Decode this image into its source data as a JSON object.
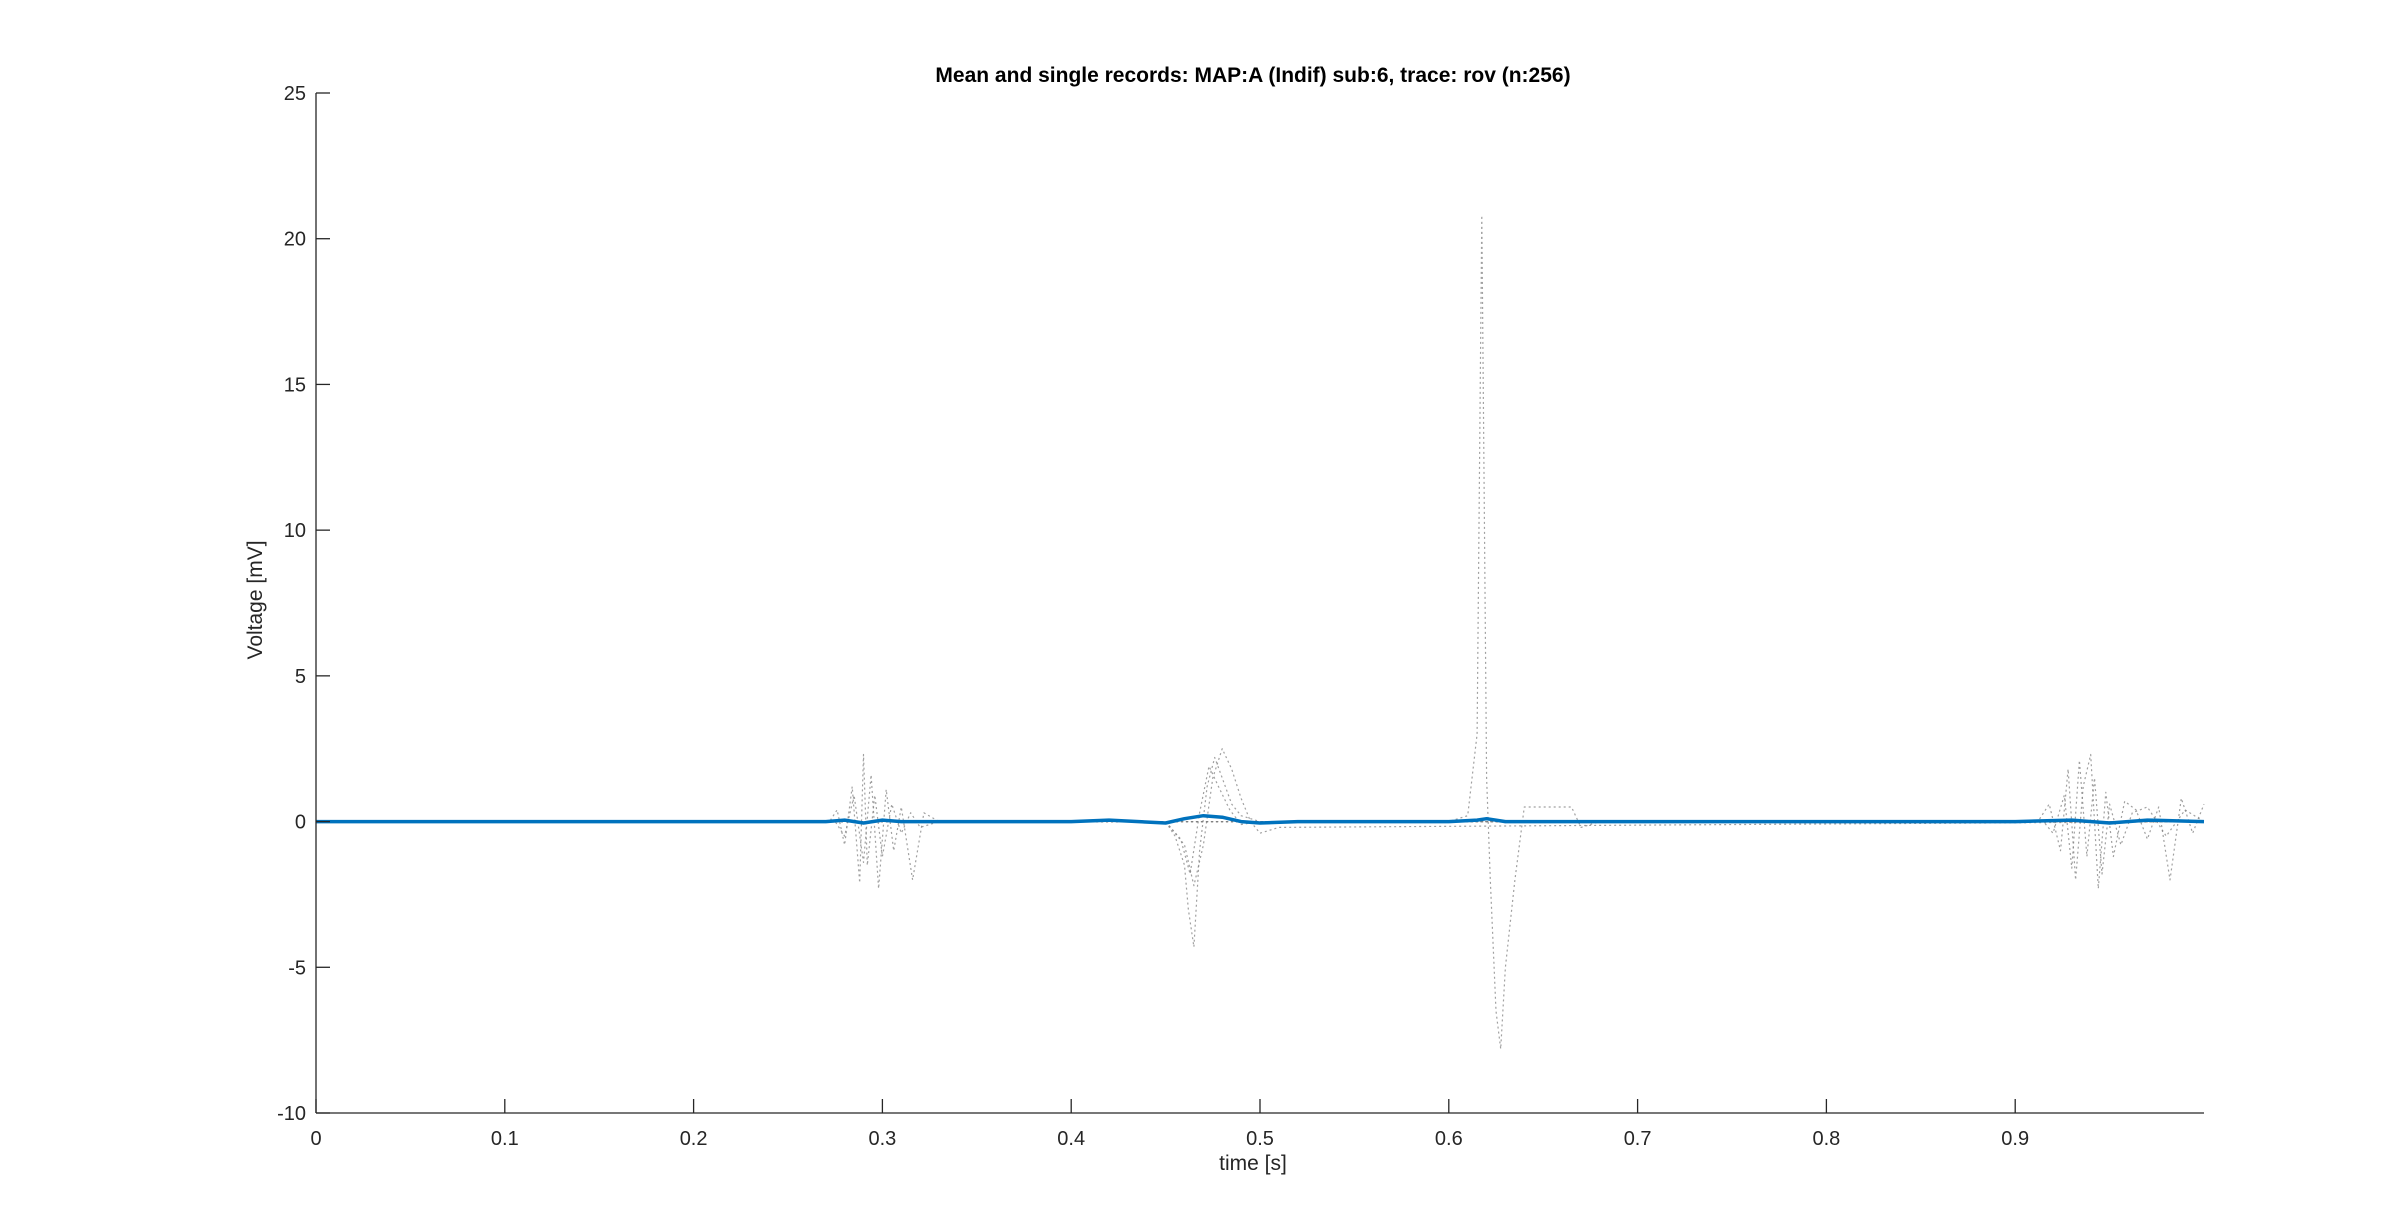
{
  "chart_data": {
    "type": "line",
    "title": "Mean and single records: MAP:A (Indif) sub:6, trace: rov (n:256)",
    "xlabel": "time [s]",
    "ylabel": "Voltage [mV]",
    "xlim": [
      0,
      1
    ],
    "ylim": [
      -10,
      25
    ],
    "xticks": [
      0,
      0.1,
      0.2,
      0.3,
      0.4,
      0.5,
      0.6,
      0.7,
      0.8,
      0.9
    ],
    "xtick_labels": [
      "0",
      "0.1",
      "0.2",
      "0.3",
      "0.4",
      "0.5",
      "0.6",
      "0.7",
      "0.8",
      "0.9"
    ],
    "yticks": [
      -10,
      -5,
      0,
      5,
      10,
      15,
      20,
      25
    ],
    "ytick_labels": [
      "-10",
      "-5",
      "0",
      "5",
      "10",
      "15",
      "20",
      "25"
    ],
    "grid": false,
    "legend": "none",
    "colors": {
      "mean": "#0072BD",
      "single": "#808080",
      "axis": "#262626"
    },
    "series": [
      {
        "style": "solid-thick",
        "x": [
          0,
          0.27,
          0.28,
          0.29,
          0.3,
          0.31,
          0.33,
          0.4,
          0.42,
          0.45,
          0.46,
          0.47,
          0.48,
          0.49,
          0.5,
          0.52,
          0.6,
          0.615,
          0.62,
          0.63,
          0.7,
          0.9,
          0.93,
          0.95,
          0.97,
          1.0
        ],
        "y": [
          0,
          0,
          0.05,
          -0.05,
          0.05,
          0,
          0,
          0,
          0.05,
          -0.05,
          0.1,
          0.2,
          0.15,
          0,
          -0.05,
          0,
          0,
          0.05,
          0.1,
          0,
          0,
          0,
          0.05,
          -0.05,
          0.05,
          0
        ]
      },
      {
        "style": "dotted",
        "x": [
          0,
          0.6,
          0.61,
          0.615,
          0.6175,
          0.62,
          0.622,
          0.625,
          0.6275,
          0.63,
          0.635,
          0.64,
          0.65,
          0.665,
          0.67,
          0.68,
          1.0
        ],
        "y": [
          0,
          0,
          0.2,
          3,
          20.8,
          1.5,
          -2,
          -6.5,
          -7.8,
          -5,
          -2,
          0.5,
          0.5,
          0.5,
          -0.2,
          0,
          0
        ]
      },
      {
        "style": "dotted",
        "x": [
          0,
          0.45,
          0.455,
          0.46,
          0.462,
          0.465,
          0.468,
          0.472,
          0.476,
          0.48,
          0.485,
          0.49,
          0.5,
          1.0
        ],
        "y": [
          0,
          0,
          -0.5,
          -1.5,
          -3,
          -4.3,
          -1,
          1.2,
          2.2,
          1.5,
          0.6,
          0.2,
          0,
          0
        ]
      },
      {
        "style": "dotted",
        "x": [
          0,
          0.45,
          0.46,
          0.465,
          0.47,
          0.475,
          0.48,
          0.485,
          0.49,
          0.495,
          0.5,
          0.51,
          1.0
        ],
        "y": [
          0,
          0,
          -0.8,
          -2.2,
          -0.8,
          1.5,
          2.5,
          1.8,
          0.8,
          0,
          -0.4,
          -0.2,
          0
        ]
      },
      {
        "style": "dotted",
        "x": [
          0,
          0.45,
          0.458,
          0.463,
          0.468,
          0.473,
          0.478,
          0.484,
          0.49,
          0.5,
          1.0
        ],
        "y": [
          0,
          0,
          -0.6,
          -1.8,
          0.3,
          1.9,
          1.2,
          0.4,
          -0.1,
          0,
          0
        ]
      },
      {
        "style": "dotted",
        "x": [
          0,
          0.272,
          0.276,
          0.28,
          0.284,
          0.288,
          0.29,
          0.292,
          0.296,
          0.3,
          0.305,
          0.31,
          0.315,
          0.32,
          0.33,
          1.0
        ],
        "y": [
          0,
          0,
          0.4,
          -0.8,
          1.2,
          -2.1,
          2.3,
          -1.5,
          0.9,
          -1.2,
          0.6,
          -0.4,
          0.3,
          -0.2,
          0,
          0
        ]
      },
      {
        "style": "dotted",
        "x": [
          0,
          0.275,
          0.28,
          0.285,
          0.29,
          0.294,
          0.298,
          0.302,
          0.306,
          0.31,
          0.316,
          0.322,
          0.33,
          1.0
        ],
        "y": [
          0,
          0,
          -0.5,
          0.9,
          -1.4,
          1.6,
          -2.3,
          1.1,
          -1.0,
          0.5,
          -2.0,
          0.3,
          0,
          0
        ]
      },
      {
        "style": "dotted",
        "x": [
          0,
          0.912,
          0.918,
          0.924,
          0.928,
          0.932,
          0.936,
          0.94,
          0.944,
          0.948,
          0.952,
          0.958,
          0.964,
          0.97,
          0.976,
          0.982,
          0.988,
          0.994,
          1.0
        ],
        "y": [
          0,
          0,
          0.6,
          -1.0,
          1.8,
          -2.0,
          1.2,
          2.3,
          -2.3,
          1.0,
          -1.2,
          0.7,
          0.4,
          -0.6,
          0.5,
          -2.0,
          0.8,
          -0.4,
          0.6
        ]
      },
      {
        "style": "dotted",
        "x": [
          0,
          0.915,
          0.92,
          0.926,
          0.93,
          0.934,
          0.938,
          0.942,
          0.946,
          0.95,
          0.956,
          0.962,
          0.97,
          0.98,
          0.99,
          1.0
        ],
        "y": [
          0,
          0,
          -0.4,
          0.9,
          -1.6,
          2.1,
          -1.2,
          1.5,
          -1.8,
          0.6,
          -0.8,
          0.3,
          0.5,
          -0.5,
          0.4,
          0
        ]
      }
    ]
  }
}
